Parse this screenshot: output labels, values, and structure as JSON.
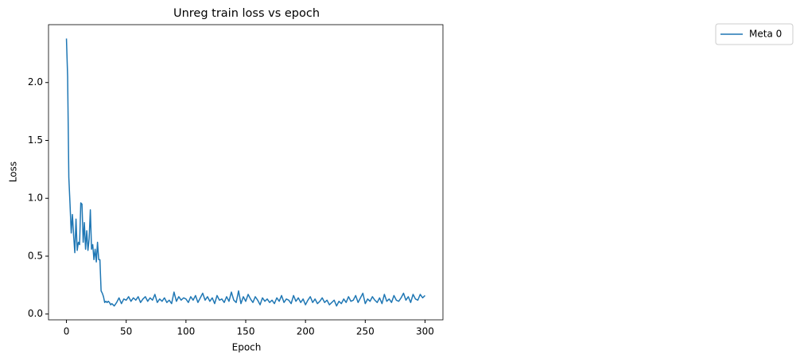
{
  "chart_data": {
    "type": "line",
    "title": "Unreg train loss vs epoch",
    "x_label": "Epoch",
    "y_label": "Loss",
    "x": [
      0,
      1,
      2,
      3,
      4,
      5,
      6,
      7,
      8,
      9,
      10,
      11,
      12,
      13,
      14,
      15,
      16,
      17,
      18,
      19,
      20,
      21,
      22,
      23,
      24,
      25,
      26,
      27,
      28,
      29,
      30,
      31,
      32,
      33,
      34,
      35,
      36,
      37,
      38,
      39,
      40,
      42,
      44,
      46,
      48,
      50,
      52,
      54,
      56,
      58,
      60,
      62,
      64,
      66,
      68,
      70,
      72,
      74,
      76,
      78,
      80,
      82,
      84,
      86,
      88,
      90,
      92,
      94,
      96,
      98,
      100,
      102,
      104,
      106,
      108,
      110,
      112,
      114,
      116,
      118,
      120,
      122,
      124,
      126,
      128,
      130,
      132,
      134,
      136,
      138,
      140,
      142,
      144,
      146,
      148,
      150,
      152,
      154,
      156,
      158,
      160,
      162,
      164,
      166,
      168,
      170,
      172,
      174,
      176,
      178,
      180,
      182,
      184,
      186,
      188,
      190,
      192,
      194,
      196,
      198,
      200,
      202,
      204,
      206,
      208,
      210,
      212,
      214,
      216,
      218,
      220,
      222,
      224,
      226,
      228,
      230,
      232,
      234,
      236,
      238,
      240,
      242,
      244,
      246,
      248,
      250,
      252,
      254,
      256,
      258,
      260,
      262,
      264,
      266,
      268,
      270,
      272,
      274,
      276,
      278,
      280,
      282,
      284,
      286,
      288,
      290,
      292,
      294,
      296,
      298,
      300
    ],
    "series": [
      {
        "name": "Meta 0",
        "color": "#1f77b4",
        "values": [
          2.38,
          2.05,
          1.18,
          0.95,
          0.7,
          0.86,
          0.68,
          0.53,
          0.82,
          0.55,
          0.62,
          0.6,
          0.96,
          0.95,
          0.62,
          0.79,
          0.56,
          0.72,
          0.55,
          0.65,
          0.9,
          0.56,
          0.6,
          0.47,
          0.56,
          0.45,
          0.62,
          0.47,
          0.47,
          0.2,
          0.18,
          0.15,
          0.1,
          0.11,
          0.1,
          0.11,
          0.1,
          0.08,
          0.09,
          0.08,
          0.07,
          0.1,
          0.14,
          0.09,
          0.13,
          0.12,
          0.15,
          0.11,
          0.14,
          0.12,
          0.15,
          0.1,
          0.13,
          0.15,
          0.11,
          0.14,
          0.12,
          0.17,
          0.1,
          0.13,
          0.11,
          0.14,
          0.1,
          0.12,
          0.09,
          0.19,
          0.11,
          0.15,
          0.12,
          0.14,
          0.13,
          0.1,
          0.15,
          0.12,
          0.16,
          0.1,
          0.14,
          0.18,
          0.12,
          0.15,
          0.11,
          0.14,
          0.09,
          0.16,
          0.12,
          0.13,
          0.1,
          0.15,
          0.11,
          0.19,
          0.12,
          0.1,
          0.2,
          0.09,
          0.15,
          0.11,
          0.17,
          0.13,
          0.1,
          0.15,
          0.12,
          0.08,
          0.14,
          0.11,
          0.13,
          0.1,
          0.12,
          0.09,
          0.14,
          0.11,
          0.16,
          0.1,
          0.13,
          0.12,
          0.09,
          0.16,
          0.11,
          0.14,
          0.1,
          0.13,
          0.08,
          0.12,
          0.15,
          0.1,
          0.13,
          0.09,
          0.11,
          0.14,
          0.1,
          0.12,
          0.08,
          0.1,
          0.12,
          0.07,
          0.11,
          0.09,
          0.13,
          0.1,
          0.15,
          0.11,
          0.12,
          0.16,
          0.1,
          0.14,
          0.18,
          0.09,
          0.13,
          0.11,
          0.15,
          0.12,
          0.1,
          0.14,
          0.09,
          0.17,
          0.11,
          0.13,
          0.1,
          0.16,
          0.12,
          0.11,
          0.14,
          0.18,
          0.12,
          0.15,
          0.1,
          0.17,
          0.13,
          0.12,
          0.17,
          0.14,
          0.16
        ]
      }
    ],
    "xlim": [
      -15,
      315
    ],
    "xticks": [
      0,
      50,
      100,
      150,
      200,
      250,
      300
    ],
    "ylim": [
      -0.05,
      2.5
    ],
    "yticks": [
      {
        "value": 0,
        "label": "0.0"
      },
      {
        "value": 0.5,
        "label": "0.5"
      },
      {
        "value": 1,
        "label": "1.0"
      },
      {
        "value": 1.5,
        "label": "1.5"
      },
      {
        "value": 2,
        "label": "2.0"
      }
    ],
    "grid": false,
    "legend": "outside-right"
  }
}
